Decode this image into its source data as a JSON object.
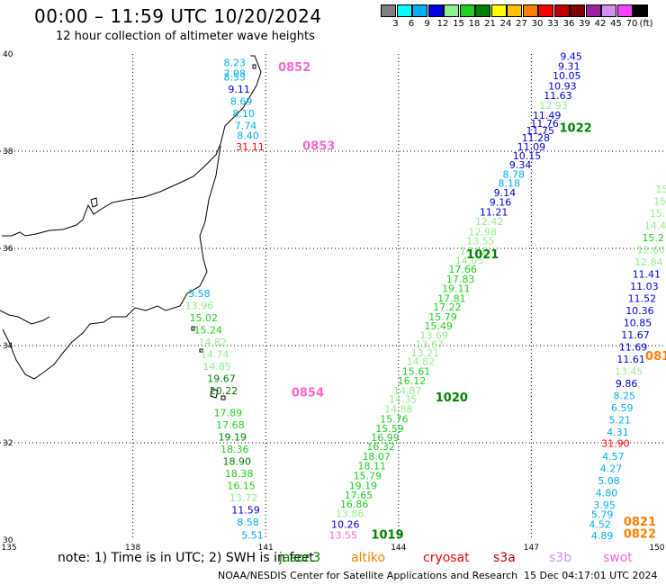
{
  "title": "00:00 – 11:59 UTC 10/20/2024",
  "subtitle": "12 hour collection of altimeter wave heights",
  "legend": {
    "unit": "(ft)",
    "items": [
      {
        "label": "3",
        "color": "#808080"
      },
      {
        "label": "6",
        "color": "#00ffff"
      },
      {
        "label": "9",
        "color": "#00b0f0"
      },
      {
        "label": "12",
        "color": "#0000e0"
      },
      {
        "label": "15",
        "color": "#90f090"
      },
      {
        "label": "18",
        "color": "#20d020"
      },
      {
        "label": "21",
        "color": "#008000"
      },
      {
        "label": "24",
        "color": "#ffff00"
      },
      {
        "label": "27",
        "color": "#ffc000"
      },
      {
        "label": "30",
        "color": "#ff8000"
      },
      {
        "label": "33",
        "color": "#ff0000"
      },
      {
        "label": "36",
        "color": "#c00000"
      },
      {
        "label": "39",
        "color": "#800000"
      },
      {
        "label": "42",
        "color": "#a020a0"
      },
      {
        "label": "45",
        "color": "#d090f0"
      },
      {
        "label": "70",
        "color": "#ff40ff"
      },
      {
        "label": "",
        "color": "#000000"
      }
    ]
  },
  "axes": {
    "lon_labels": [
      "135",
      "138",
      "141",
      "144",
      "147",
      "150"
    ],
    "lat_labels": [
      "30",
      "32",
      "34",
      "36",
      "38",
      "40"
    ]
  },
  "passes": [
    {
      "id": "0852",
      "color": "#ff66cc",
      "lon": 141.65,
      "lat": 39.65
    },
    {
      "id": "0853",
      "color": "#ff66cc",
      "lon": 142.2,
      "lat": 38.03
    },
    {
      "id": "0854",
      "color": "#ff66cc",
      "lon": 141.95,
      "lat": 32.95
    },
    {
      "id": "1022",
      "color": "#008000",
      "lon": 148.0,
      "lat": 38.4
    },
    {
      "id": "1021",
      "color": "#008000",
      "lon": 145.9,
      "lat": 35.8
    },
    {
      "id": "1020",
      "color": "#008000",
      "lon": 145.2,
      "lat": 32.85
    },
    {
      "id": "1019",
      "color": "#008000",
      "lon": 143.75,
      "lat": 30.03
    },
    {
      "id": "0821",
      "color": "#ff8000",
      "lon": 149.45,
      "lat": 30.3
    },
    {
      "id": "0822",
      "color": "#ff8000",
      "lon": 149.45,
      "lat": 30.05
    },
    {
      "id": "081",
      "color": "#ff8000",
      "lon": 149.85,
      "lat": 33.7
    }
  ],
  "readings": [
    {
      "v": "8.23",
      "c": "#00b0f0",
      "lon": 140.3,
      "lat": 39.75
    },
    {
      "v": "7.98",
      "c": "#00b0f0",
      "lon": 140.3,
      "lat": 39.53
    },
    {
      "v": "8.53",
      "c": "#00b0f0",
      "lon": 140.3,
      "lat": 39.45
    },
    {
      "v": "9.11",
      "c": "#0000e0",
      "lon": 140.4,
      "lat": 39.2
    },
    {
      "v": "8.69",
      "c": "#00b0f0",
      "lon": 140.45,
      "lat": 38.95
    },
    {
      "v": "8.10",
      "c": "#00b0f0",
      "lon": 140.5,
      "lat": 38.7
    },
    {
      "v": "7.74",
      "c": "#00b0f0",
      "lon": 140.55,
      "lat": 38.45
    },
    {
      "v": "8.40",
      "c": "#00b0f0",
      "lon": 140.6,
      "lat": 38.25
    },
    {
      "v": "31.11",
      "c": "#ff0000",
      "lon": 140.65,
      "lat": 38.02
    },
    {
      "v": "9.45",
      "c": "#0000e0",
      "lon": 147.9,
      "lat": 39.88
    },
    {
      "v": "9.31",
      "c": "#0000e0",
      "lon": 147.85,
      "lat": 39.68
    },
    {
      "v": "10.05",
      "c": "#0000e0",
      "lon": 147.8,
      "lat": 39.48
    },
    {
      "v": "10.93",
      "c": "#0000e0",
      "lon": 147.7,
      "lat": 39.27
    },
    {
      "v": "11.63",
      "c": "#0000e0",
      "lon": 147.6,
      "lat": 39.07
    },
    {
      "v": "12.93",
      "c": "#90f090",
      "lon": 147.5,
      "lat": 38.87
    },
    {
      "v": "11.49",
      "c": "#0000e0",
      "lon": 147.35,
      "lat": 38.67
    },
    {
      "v": "11.76",
      "c": "#0000e0",
      "lon": 147.3,
      "lat": 38.5
    },
    {
      "v": "11.75",
      "c": "#0000e0",
      "lon": 147.2,
      "lat": 38.35
    },
    {
      "v": "11.28",
      "c": "#0000e0",
      "lon": 147.1,
      "lat": 38.2
    },
    {
      "v": "11.09",
      "c": "#0000e0",
      "lon": 147.0,
      "lat": 38.02
    },
    {
      "v": "10.15",
      "c": "#0000e0",
      "lon": 146.9,
      "lat": 37.83
    },
    {
      "v": "9.34",
      "c": "#0000e0",
      "lon": 146.75,
      "lat": 37.65
    },
    {
      "v": "8.78",
      "c": "#00b0f0",
      "lon": 146.6,
      "lat": 37.45
    },
    {
      "v": "8.18",
      "c": "#00b0f0",
      "lon": 146.5,
      "lat": 37.27
    },
    {
      "v": "9.14",
      "c": "#0000e0",
      "lon": 146.4,
      "lat": 37.07
    },
    {
      "v": "9.16",
      "c": "#0000e0",
      "lon": 146.3,
      "lat": 36.88
    },
    {
      "v": "11.21",
      "c": "#0000e0",
      "lon": 146.15,
      "lat": 36.68
    },
    {
      "v": "12.42",
      "c": "#90f090",
      "lon": 146.05,
      "lat": 36.48
    },
    {
      "v": "12.98",
      "c": "#90f090",
      "lon": 145.9,
      "lat": 36.27
    },
    {
      "v": "13.55",
      "c": "#90f090",
      "lon": 145.85,
      "lat": 36.08
    },
    {
      "v": "14.62",
      "c": "#90f090",
      "lon": 145.7,
      "lat": 35.88
    },
    {
      "v": "14.05",
      "c": "#90f090",
      "lon": 145.6,
      "lat": 35.68
    },
    {
      "v": "17.66",
      "c": "#20d020",
      "lon": 145.45,
      "lat": 35.5
    },
    {
      "v": "17.83",
      "c": "#20d020",
      "lon": 145.4,
      "lat": 35.3
    },
    {
      "v": "19.11",
      "c": "#20d020",
      "lon": 145.3,
      "lat": 35.1
    },
    {
      "v": "17.81",
      "c": "#20d020",
      "lon": 145.2,
      "lat": 34.9
    },
    {
      "v": "17.22",
      "c": "#20d020",
      "lon": 145.1,
      "lat": 34.72
    },
    {
      "v": "15.79",
      "c": "#20d020",
      "lon": 145.0,
      "lat": 34.52
    },
    {
      "v": "15.49",
      "c": "#20d020",
      "lon": 144.9,
      "lat": 34.33
    },
    {
      "v": "13.69",
      "c": "#90f090",
      "lon": 144.8,
      "lat": 34.14
    },
    {
      "v": "13.67",
      "c": "#90f090",
      "lon": 144.7,
      "lat": 33.95
    },
    {
      "v": "13.21",
      "c": "#90f090",
      "lon": 144.6,
      "lat": 33.78
    },
    {
      "v": "14.82",
      "c": "#90f090",
      "lon": 144.5,
      "lat": 33.6
    },
    {
      "v": "15.61",
      "c": "#20d020",
      "lon": 144.4,
      "lat": 33.4
    },
    {
      "v": "16.12",
      "c": "#20d020",
      "lon": 144.3,
      "lat": 33.2
    },
    {
      "v": "14.87",
      "c": "#90f090",
      "lon": 144.2,
      "lat": 33.0
    },
    {
      "v": "14.35",
      "c": "#90f090",
      "lon": 144.1,
      "lat": 32.82
    },
    {
      "v": "14.88",
      "c": "#90f090",
      "lon": 144.0,
      "lat": 32.62
    },
    {
      "v": "15.76",
      "c": "#20d020",
      "lon": 143.9,
      "lat": 32.42
    },
    {
      "v": "15.59",
      "c": "#20d020",
      "lon": 143.8,
      "lat": 32.22
    },
    {
      "v": "16.99",
      "c": "#20d020",
      "lon": 143.7,
      "lat": 32.04
    },
    {
      "v": "16.32",
      "c": "#20d020",
      "lon": 143.6,
      "lat": 31.85
    },
    {
      "v": "18.07",
      "c": "#20d020",
      "lon": 143.5,
      "lat": 31.65
    },
    {
      "v": "18.11",
      "c": "#20d020",
      "lon": 143.4,
      "lat": 31.45
    },
    {
      "v": "15.79",
      "c": "#20d020",
      "lon": 143.3,
      "lat": 31.25
    },
    {
      "v": "19.19",
      "c": "#20d020",
      "lon": 143.2,
      "lat": 31.05
    },
    {
      "v": "17.65",
      "c": "#20d020",
      "lon": 143.1,
      "lat": 30.85
    },
    {
      "v": "16.86",
      "c": "#20d020",
      "lon": 143.0,
      "lat": 30.67
    },
    {
      "v": "13.86",
      "c": "#90f090",
      "lon": 142.9,
      "lat": 30.47
    },
    {
      "v": "10.26",
      "c": "#0000e0",
      "lon": 142.8,
      "lat": 30.25
    },
    {
      "v": "13.55",
      "c": "#ff66cc",
      "lon": 142.75,
      "lat": 30.03
    },
    {
      "v": "3.58",
      "c": "#00b0f0",
      "lon": 139.5,
      "lat": 35.0
    },
    {
      "v": "13.96",
      "c": "#90f090",
      "lon": 139.5,
      "lat": 34.75
    },
    {
      "v": "15.02",
      "c": "#20d020",
      "lon": 139.6,
      "lat": 34.5
    },
    {
      "v": "15.24",
      "c": "#20d020",
      "lon": 139.7,
      "lat": 34.25
    },
    {
      "v": "14.82",
      "c": "#90f090",
      "lon": 139.8,
      "lat": 34.0
    },
    {
      "v": "14.74",
      "c": "#90f090",
      "lon": 139.85,
      "lat": 33.75
    },
    {
      "v": "14.85",
      "c": "#90f090",
      "lon": 139.9,
      "lat": 33.5
    },
    {
      "v": "19.67",
      "c": "#008000",
      "lon": 140.0,
      "lat": 33.25
    },
    {
      "v": "20.22",
      "c": "#008000",
      "lon": 140.05,
      "lat": 33.0
    },
    {
      "v": "17.89",
      "c": "#20d020",
      "lon": 140.15,
      "lat": 32.55
    },
    {
      "v": "17.68",
      "c": "#20d020",
      "lon": 140.2,
      "lat": 32.3
    },
    {
      "v": "19.19",
      "c": "#008000",
      "lon": 140.25,
      "lat": 32.05
    },
    {
      "v": "18.36",
      "c": "#20d020",
      "lon": 140.3,
      "lat": 31.8
    },
    {
      "v": "18.90",
      "c": "#008000",
      "lon": 140.35,
      "lat": 31.55
    },
    {
      "v": "18.38",
      "c": "#20d020",
      "lon": 140.4,
      "lat": 31.3
    },
    {
      "v": "16.15",
      "c": "#20d020",
      "lon": 140.45,
      "lat": 31.05
    },
    {
      "v": "13.72",
      "c": "#90f090",
      "lon": 140.5,
      "lat": 30.8
    },
    {
      "v": "11.59",
      "c": "#0000e0",
      "lon": 140.55,
      "lat": 30.55
    },
    {
      "v": "8.58",
      "c": "#00b0f0",
      "lon": 140.6,
      "lat": 30.3
    },
    {
      "v": "5.51",
      "c": "#00b0f0",
      "lon": 140.7,
      "lat": 30.03
    },
    {
      "v": "15",
      "c": "#90f090",
      "lon": 149.95,
      "lat": 37.15
    },
    {
      "v": "15",
      "c": "#90f090",
      "lon": 149.9,
      "lat": 36.9
    },
    {
      "v": "15.",
      "c": "#90f090",
      "lon": 149.85,
      "lat": 36.65
    },
    {
      "v": "14.4",
      "c": "#90f090",
      "lon": 149.8,
      "lat": 36.4
    },
    {
      "v": "15.2",
      "c": "#20d020",
      "lon": 149.75,
      "lat": 36.15
    },
    {
      "v": "12.60",
      "c": "#90f090",
      "lon": 149.7,
      "lat": 35.9
    },
    {
      "v": "12.84",
      "c": "#90f090",
      "lon": 149.65,
      "lat": 35.65
    },
    {
      "v": "11.41",
      "c": "#0000e0",
      "lon": 149.6,
      "lat": 35.4
    },
    {
      "v": "11.03",
      "c": "#0000e0",
      "lon": 149.55,
      "lat": 35.15
    },
    {
      "v": "11.52",
      "c": "#0000e0",
      "lon": 149.5,
      "lat": 34.9
    },
    {
      "v": "10.36",
      "c": "#0000e0",
      "lon": 149.45,
      "lat": 34.65
    },
    {
      "v": "10.85",
      "c": "#0000e0",
      "lon": 149.4,
      "lat": 34.4
    },
    {
      "v": "11.67",
      "c": "#0000e0",
      "lon": 149.35,
      "lat": 34.15
    },
    {
      "v": "11.69",
      "c": "#0000e0",
      "lon": 149.3,
      "lat": 33.9
    },
    {
      "v": "11.61",
      "c": "#0000e0",
      "lon": 149.25,
      "lat": 33.65
    },
    {
      "v": "13.45",
      "c": "#90f090",
      "lon": 149.2,
      "lat": 33.4
    },
    {
      "v": "9.86",
      "c": "#0000e0",
      "lon": 149.15,
      "lat": 33.15
    },
    {
      "v": "8.25",
      "c": "#00b0f0",
      "lon": 149.1,
      "lat": 32.9
    },
    {
      "v": "6.59",
      "c": "#00b0f0",
      "lon": 149.05,
      "lat": 32.65
    },
    {
      "v": "5.21",
      "c": "#00b0f0",
      "lon": 149.0,
      "lat": 32.4
    },
    {
      "v": "4.31",
      "c": "#00b0f0",
      "lon": 148.95,
      "lat": 32.15
    },
    {
      "v": "31.90",
      "c": "#ff0000",
      "lon": 148.9,
      "lat": 31.92
    },
    {
      "v": "4.57",
      "c": "#00b0f0",
      "lon": 148.85,
      "lat": 31.65
    },
    {
      "v": "4.27",
      "c": "#00b0f0",
      "lon": 148.8,
      "lat": 31.4
    },
    {
      "v": "5.08",
      "c": "#00b0f0",
      "lon": 148.75,
      "lat": 31.15
    },
    {
      "v": "4.80",
      "c": "#00b0f0",
      "lon": 148.7,
      "lat": 30.9
    },
    {
      "v": "3.95",
      "c": "#00b0f0",
      "lon": 148.65,
      "lat": 30.65
    },
    {
      "v": "5.79",
      "c": "#00b0f0",
      "lon": 148.6,
      "lat": 30.45
    },
    {
      "v": "4.52",
      "c": "#00b0f0",
      "lon": 148.55,
      "lat": 30.25
    },
    {
      "v": "4.89",
      "c": "#00b0f0",
      "lon": 148.6,
      "lat": 30.02
    }
  ],
  "note": "note: 1) Time is in UTC; 2) SWH is in feet",
  "satellites": [
    {
      "name": "jason3",
      "color": "#008000"
    },
    {
      "name": "altiko",
      "color": "#ff8000"
    },
    {
      "name": "cryosat",
      "color": "#ff0000"
    },
    {
      "name": "s3a",
      "color": "#c00000"
    },
    {
      "name": "s3b",
      "color": "#d090f0"
    },
    {
      "name": "swot",
      "color": "#ff66cc"
    }
  ],
  "footer_left": "NOAA/NESDIS Center for Satellite Applications and Research",
  "footer_right": "15 Dec 04:17:01 UTC 2024"
}
